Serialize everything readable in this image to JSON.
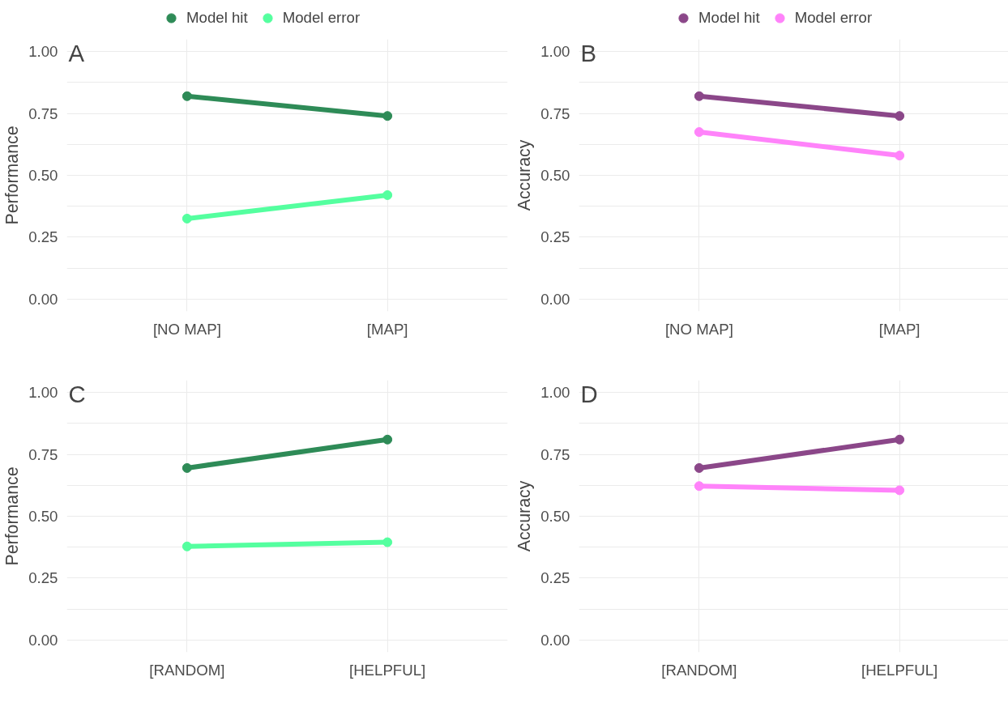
{
  "chart_data": [
    {
      "type": "line",
      "annotations": [
        "A"
      ],
      "ylabel": "Performance",
      "categories": [
        "[NO MAP]",
        "[MAP]"
      ],
      "ylim": [
        -0.05,
        1.05
      ],
      "yticks": [
        {
          "value": 0,
          "label": "0.00"
        },
        {
          "value": 0.25,
          "label": "0.25"
        },
        {
          "value": 0.5,
          "label": "0.50"
        },
        {
          "value": 0.75,
          "label": "0.75"
        },
        {
          "value": 1,
          "label": "1.00"
        }
      ],
      "grid": true,
      "legend": "top",
      "marker": "circle",
      "line_style": "solid",
      "series": [
        {
          "name": "Model hit",
          "color": "#2e8b57",
          "values": [
            0.82,
            0.74
          ]
        },
        {
          "name": "Model error",
          "color": "#54ff9f",
          "values": [
            0.325,
            0.42
          ]
        }
      ]
    },
    {
      "type": "line",
      "annotations": [
        "B"
      ],
      "ylabel": "Accuracy",
      "categories": [
        "[NO MAP]",
        "[MAP]"
      ],
      "ylim": [
        -0.05,
        1.05
      ],
      "yticks": [
        {
          "value": 0,
          "label": "0.00"
        },
        {
          "value": 0.25,
          "label": "0.25"
        },
        {
          "value": 0.5,
          "label": "0.50"
        },
        {
          "value": 0.75,
          "label": "0.75"
        },
        {
          "value": 1,
          "label": "1.00"
        }
      ],
      "grid": true,
      "legend": "top",
      "marker": "circle",
      "line_style": "solid",
      "series": [
        {
          "name": "Model hit",
          "color": "#8b4789",
          "values": [
            0.82,
            0.74
          ]
        },
        {
          "name": "Model error",
          "color": "#ff83fa",
          "values": [
            0.675,
            0.58
          ]
        }
      ]
    },
    {
      "type": "line",
      "annotations": [
        "C"
      ],
      "ylabel": "Performance",
      "categories": [
        "[RANDOM]",
        "[HELPFUL]"
      ],
      "ylim": [
        -0.05,
        1.05
      ],
      "yticks": [
        {
          "value": 0,
          "label": "0.00"
        },
        {
          "value": 0.25,
          "label": "0.25"
        },
        {
          "value": 0.5,
          "label": "0.50"
        },
        {
          "value": 0.75,
          "label": "0.75"
        },
        {
          "value": 1,
          "label": "1.00"
        }
      ],
      "grid": true,
      "marker": "circle",
      "line_style": "solid",
      "series": [
        {
          "color": "#2e8b57",
          "values": [
            0.695,
            0.81
          ]
        },
        {
          "color": "#54ff9f",
          "values": [
            0.378,
            0.395
          ]
        }
      ]
    },
    {
      "type": "line",
      "annotations": [
        "D"
      ],
      "ylabel": "Accuracy",
      "categories": [
        "[RANDOM]",
        "[HELPFUL]"
      ],
      "ylim": [
        -0.05,
        1.05
      ],
      "yticks": [
        {
          "value": 0,
          "label": "0.00"
        },
        {
          "value": 0.25,
          "label": "0.25"
        },
        {
          "value": 0.5,
          "label": "0.50"
        },
        {
          "value": 0.75,
          "label": "0.75"
        },
        {
          "value": 1,
          "label": "1.00"
        }
      ],
      "grid": true,
      "marker": "circle",
      "line_style": "solid",
      "series": [
        {
          "color": "#8b4789",
          "values": [
            0.695,
            0.81
          ]
        },
        {
          "color": "#ff83fa",
          "values": [
            0.622,
            0.605
          ]
        }
      ]
    }
  ]
}
